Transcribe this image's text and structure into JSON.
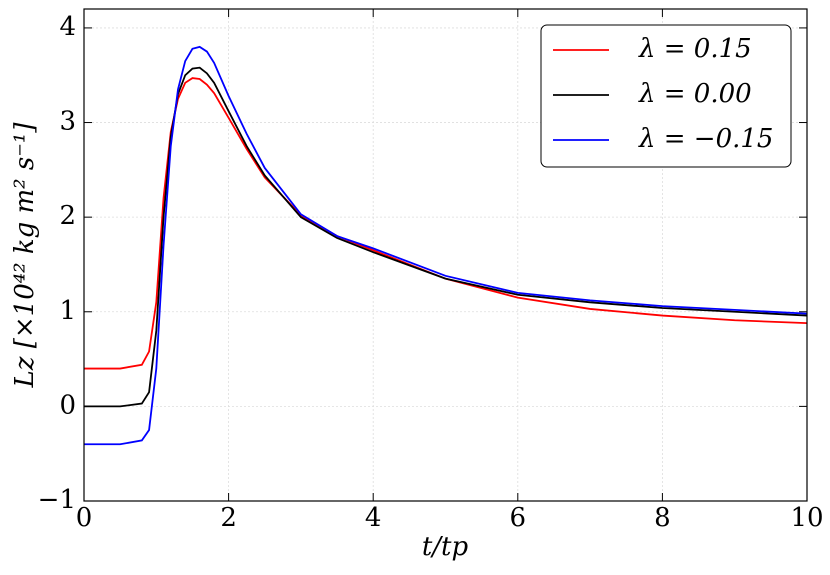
{
  "chart_data": {
    "type": "line",
    "xlabel": "t/tp",
    "ylabel": "Lz [×10⁴² kg m² s⁻¹]",
    "x": [
      0,
      0.5,
      0.8,
      0.9,
      1.0,
      1.1,
      1.2,
      1.3,
      1.4,
      1.5,
      1.6,
      1.7,
      1.8,
      2.0,
      2.25,
      2.5,
      3,
      3.5,
      4,
      5,
      6,
      7,
      8,
      9,
      10
    ],
    "series": [
      {
        "name": "λ = 0.15",
        "color": "#ff0000",
        "values": [
          0.4,
          0.4,
          0.44,
          0.58,
          1.1,
          2.2,
          2.9,
          3.25,
          3.42,
          3.47,
          3.46,
          3.4,
          3.31,
          3.05,
          2.72,
          2.42,
          2.02,
          1.8,
          1.65,
          1.35,
          1.15,
          1.03,
          0.96,
          0.91,
          0.88
        ]
      },
      {
        "name": "λ = 0.00",
        "color": "#000000",
        "values": [
          0,
          0,
          0.03,
          0.15,
          0.8,
          2.0,
          2.85,
          3.3,
          3.5,
          3.57,
          3.58,
          3.52,
          3.42,
          3.12,
          2.75,
          2.44,
          2.0,
          1.78,
          1.63,
          1.35,
          1.18,
          1.1,
          1.04,
          1.0,
          0.96
        ]
      },
      {
        "name": "λ = −0.15",
        "color": "#0000ff",
        "values": [
          -0.4,
          -0.4,
          -0.36,
          -0.25,
          0.4,
          1.7,
          2.75,
          3.35,
          3.65,
          3.78,
          3.8,
          3.75,
          3.63,
          3.28,
          2.88,
          2.52,
          2.03,
          1.8,
          1.67,
          1.38,
          1.2,
          1.12,
          1.06,
          1.02,
          0.98
        ]
      }
    ],
    "xlim": [
      0,
      10
    ],
    "xticks": [
      0,
      2,
      4,
      6,
      8,
      10
    ],
    "ylim": [
      -1,
      4.2
    ],
    "yticks": [
      {
        "value": -1,
        "label": "−1"
      },
      0,
      1,
      2,
      3,
      4
    ],
    "grid": true,
    "legend": "upper right"
  }
}
